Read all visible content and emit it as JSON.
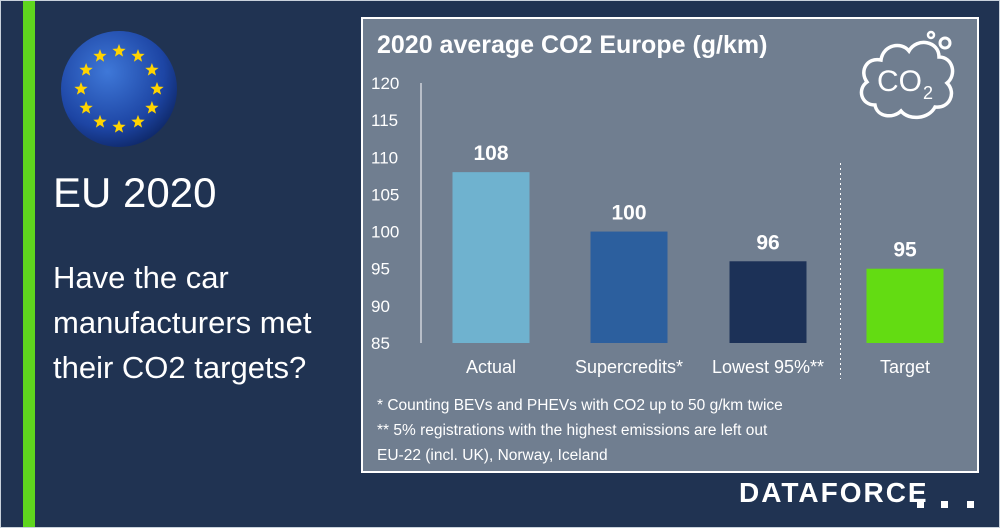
{
  "left": {
    "headline": "EU 2020",
    "question": "Have the car manufacturers met their CO2 targets?"
  },
  "icons": {
    "flag": "eu-flag-icon",
    "co2": "co2-cloud-icon"
  },
  "co2_icon_text": "CO",
  "co2_icon_sub": "2",
  "chart_data": {
    "type": "bar",
    "title": "2020 average CO2 Europe (g/km)",
    "categories": [
      "Actual",
      "Supercredits*",
      "Lowest 95%**",
      "Target"
    ],
    "values": [
      108,
      100,
      96,
      95
    ],
    "data_labels": [
      "108",
      "100",
      "96",
      "95"
    ],
    "colors": [
      "#6fb2cf",
      "#2c5f9e",
      "#1c3157",
      "#63dc12"
    ],
    "ylim": [
      85,
      120
    ],
    "yticks": [
      85,
      90,
      95,
      100,
      105,
      110,
      115,
      120
    ],
    "separator_before_last": true,
    "grid": false
  },
  "footnotes": [
    "*  Counting BEVs and PHEVs with CO2 up to 50 g/km twice",
    "** 5% registrations with the highest emissions are left out",
    "EU-22 (incl. UK), Norway, Iceland"
  ],
  "brand": "DATAFORCE"
}
